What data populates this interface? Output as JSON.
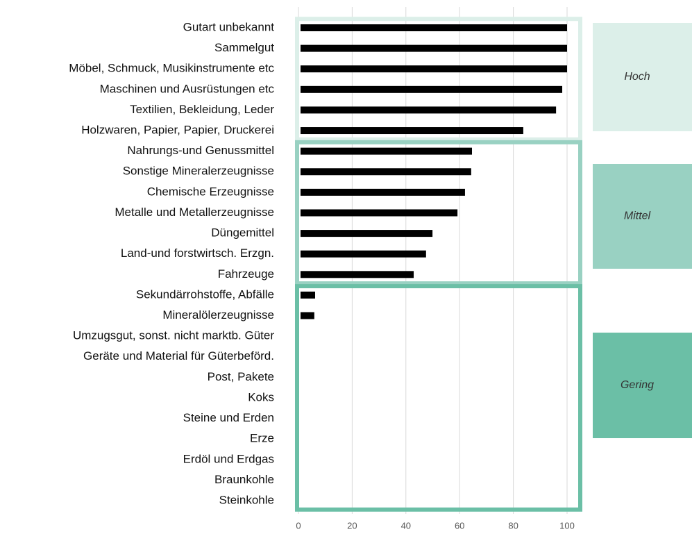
{
  "chart_data": {
    "type": "barh",
    "categories": [
      "Gutart unbekannt",
      "Sammelgut",
      "Möbel, Schmuck, Musikinstrumente etc",
      "Maschinen und Ausrüstungen etc",
      "Textilien, Bekleidung, Leder",
      "Holzwaren, Papier, Papier, Druckerei",
      "Nahrungs-und Genussmittel",
      "Sonstige Mineralerzeugnisse",
      "Chemische Erzeugnisse",
      "Metalle und Metallerzeugnisse",
      "Düngemittel",
      "Land-und forstwirtsch. Erzgn.",
      "Fahrzeuge",
      "Sekundärrohstoffe, Abfälle",
      "Mineralölerzeugnisse",
      "Umzugsgut, sonst. nicht marktb. Güter",
      "Geräte und Material für Güterbeförd.",
      "Post, Pakete",
      "Koks",
      "Steine und Erden",
      "Erze",
      "Erdöl und Erdgas",
      "Braunkohle",
      "Steinkohle"
    ],
    "values": [
      100,
      100,
      100,
      98.2,
      95.9,
      83.7,
      64.6,
      64.3,
      62,
      59.2,
      49.9,
      47.5,
      42.9,
      6.2,
      5.9,
      0,
      0,
      0,
      0,
      0,
      0,
      0,
      0,
      0
    ],
    "color": "#000000",
    "xlim": [
      0,
      100
    ],
    "xticks": [
      0,
      20,
      40,
      60,
      80,
      100
    ],
    "grid": true,
    "groups": [
      {
        "name": "Hoch",
        "color": "#dcefe9",
        "count": 6
      },
      {
        "name": "Mittel",
        "color": "#99d1c2",
        "count": 7
      },
      {
        "name": "Gering",
        "color": "#6bbfa6",
        "count": 11
      }
    ]
  }
}
